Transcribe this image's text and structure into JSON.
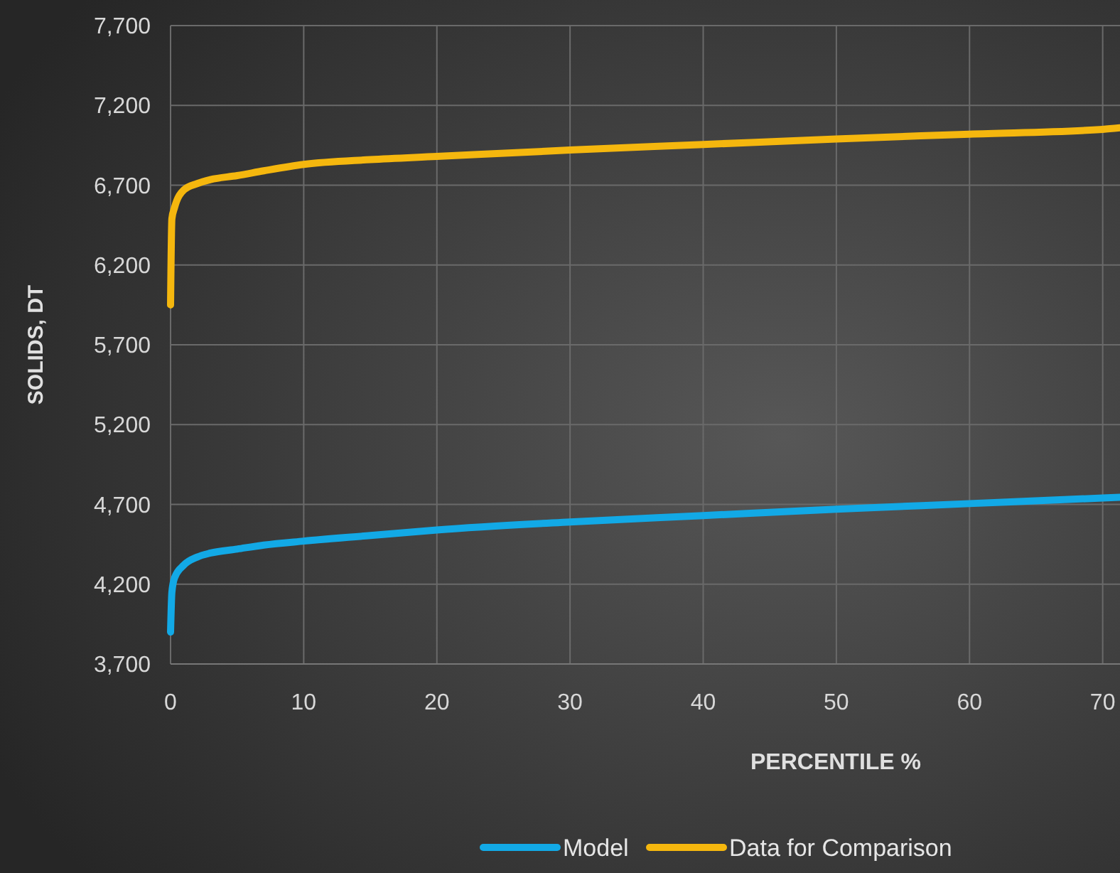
{
  "chart_data": {
    "type": "line",
    "xlabel": "PERCENTILE %",
    "ylabel": "SOLIDS, DT",
    "xlim": [
      0,
      71.3
    ],
    "xticks": [
      0,
      10,
      20,
      30,
      40,
      50,
      60,
      70
    ],
    "ylim": [
      3700,
      7700
    ],
    "yticks": [
      {
        "value": 3700,
        "label": "3,700"
      },
      {
        "value": 4200,
        "label": "4,200"
      },
      {
        "value": 4700,
        "label": "4,700"
      },
      {
        "value": 5200,
        "label": "5,200"
      },
      {
        "value": 5700,
        "label": "5,700"
      },
      {
        "value": 6200,
        "label": "6,200"
      },
      {
        "value": 6700,
        "label": "6,700"
      },
      {
        "value": 7200,
        "label": "7,200"
      },
      {
        "value": 7700,
        "label": "7,700"
      }
    ],
    "grid": true,
    "legend": "bottom",
    "marker": "none",
    "line_style": "solid",
    "series": [
      {
        "name": "Model",
        "color": "#12a9e6",
        "x": [
          0,
          0.1,
          0.3,
          1,
          2,
          3,
          5,
          7,
          10,
          15,
          20,
          30,
          40,
          50,
          60,
          70,
          71.3
        ],
        "values": [
          3900,
          4150,
          4240,
          4320,
          4370,
          4395,
          4420,
          4445,
          4470,
          4505,
          4540,
          4590,
          4630,
          4670,
          4705,
          4740,
          4745
        ]
      },
      {
        "name": "Data for Comparison",
        "color": "#f5b70e",
        "x": [
          0,
          0.1,
          0.3,
          1,
          2,
          3,
          5,
          7,
          10,
          15,
          20,
          30,
          40,
          50,
          60,
          70,
          71.3
        ],
        "values": [
          5950,
          6490,
          6560,
          6670,
          6710,
          6735,
          6760,
          6790,
          6830,
          6860,
          6880,
          6920,
          6955,
          6990,
          7020,
          7050,
          7060
        ]
      }
    ]
  }
}
